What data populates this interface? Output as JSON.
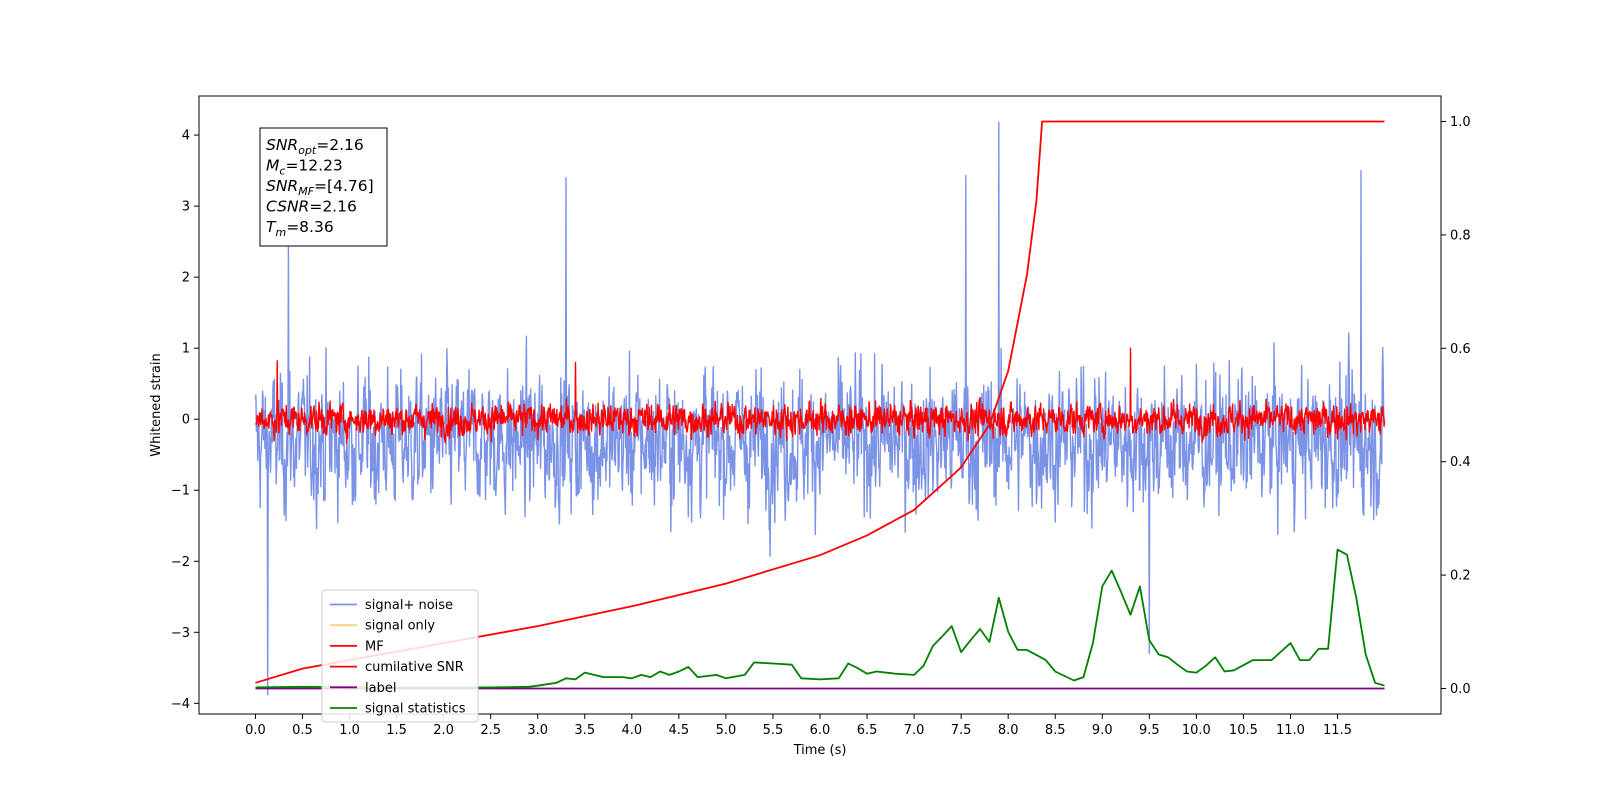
{
  "chart_data": {
    "type": "line",
    "xlabel": "Time (s)",
    "ylabel": "Whitened strain",
    "xlim": [
      -0.6,
      12.6
    ],
    "ylim": [
      -4.15,
      4.55
    ],
    "y2lim": [
      -0.045,
      1.045
    ],
    "x_ticks": [
      "0.0",
      "0.5",
      "1.0",
      "1.5",
      "2.0",
      "2.5",
      "3.0",
      "3.5",
      "4.0",
      "4.5",
      "5.0",
      "5.5",
      "6.0",
      "6.5",
      "7.0",
      "7.5",
      "8.0",
      "8.5",
      "9.0",
      "9.5",
      "10.0",
      "10.5",
      "11.0",
      "11.5"
    ],
    "y_ticks": [
      "4",
      "3",
      "2",
      "1",
      "0",
      "−1",
      "−2",
      "−3",
      "−4"
    ],
    "y2_ticks": [
      "1.0",
      "0.8",
      "0.6",
      "0.4",
      "0.2",
      "0.0"
    ],
    "annotation": {
      "lines": [
        {
          "name": "SNR",
          "sub": "opt",
          "value": "=2.16"
        },
        {
          "name": "M",
          "sub": "c",
          "value": "=12.23"
        },
        {
          "name": "SNR",
          "sub": "MF",
          "value": "=[4.76]"
        },
        {
          "name": "CSNR",
          "sub": "",
          "value": "=2.16"
        },
        {
          "name": "T",
          "sub": "m",
          "value": "=8.36"
        }
      ]
    },
    "legend": {
      "placement": "lower-left",
      "entries": [
        {
          "label": "signal+ noise",
          "color": "#7b93e6"
        },
        {
          "label": "signal only",
          "color": "#ffd27a"
        },
        {
          "label": "MF",
          "color": "#ff0000"
        },
        {
          "label": "cumilative SNR",
          "color": "#ff0000"
        },
        {
          "label": "label",
          "color": "#800080"
        },
        {
          "label": "signal statistics",
          "color": "#008000"
        }
      ]
    },
    "series": [
      {
        "name": "signal+ noise",
        "axis": "left",
        "color": "#7b93e6",
        "t_range": [
          0.0,
          12.0
        ],
        "mean": -0.3,
        "std": 0.72,
        "min": -4.0,
        "max": 4.18,
        "peaks": [
          [
            7.9,
            4.18
          ],
          [
            7.55,
            3.43
          ],
          [
            11.75,
            3.5
          ],
          [
            3.3,
            3.4
          ],
          [
            0.35,
            2.5
          ],
          [
            0.13,
            -3.88
          ],
          [
            9.5,
            -3.3
          ]
        ]
      },
      {
        "name": "MF",
        "axis": "left",
        "color": "#ff0000",
        "t_range": [
          0.0,
          12.0
        ],
        "mean": 0.0,
        "std": 0.17,
        "min": -0.35,
        "max": 1.0,
        "peaks": [
          [
            0.23,
            0.82
          ],
          [
            9.3,
            1.0
          ],
          [
            3.4,
            0.8
          ]
        ]
      },
      {
        "name": "cumilative SNR",
        "axis": "right",
        "color": "#ff0000",
        "x": [
          0.0,
          0.5,
          1.0,
          2.0,
          3.0,
          4.0,
          5.0,
          6.0,
          6.5,
          7.0,
          7.5,
          7.8,
          8.0,
          8.2,
          8.3,
          8.36,
          12.0
        ],
        "y": [
          0.01,
          0.035,
          0.05,
          0.08,
          0.11,
          0.145,
          0.185,
          0.235,
          0.27,
          0.315,
          0.39,
          0.465,
          0.56,
          0.73,
          0.86,
          1.0,
          1.0
        ]
      },
      {
        "name": "label",
        "axis": "right",
        "color": "#800080",
        "x": [
          0.0,
          12.0
        ],
        "y": [
          0.0,
          0.0
        ]
      },
      {
        "name": "signal statistics",
        "axis": "right",
        "color": "#008000",
        "x": [
          0.0,
          0.5,
          1.0,
          1.5,
          2.0,
          2.5,
          2.9,
          3.0,
          3.2,
          3.3,
          3.4,
          3.5,
          3.7,
          3.9,
          4.0,
          4.1,
          4.2,
          4.3,
          4.4,
          4.5,
          4.6,
          4.7,
          4.9,
          5.0,
          5.2,
          5.3,
          5.5,
          5.7,
          5.8,
          6.0,
          6.2,
          6.3,
          6.4,
          6.5,
          6.6,
          6.8,
          7.0,
          7.1,
          7.2,
          7.3,
          7.4,
          7.5,
          7.6,
          7.7,
          7.8,
          7.9,
          8.0,
          8.1,
          8.2,
          8.4,
          8.5,
          8.7,
          8.8,
          8.9,
          9.0,
          9.1,
          9.2,
          9.3,
          9.4,
          9.5,
          9.6,
          9.7,
          9.8,
          9.9,
          10.0,
          10.1,
          10.2,
          10.3,
          10.4,
          10.6,
          10.8,
          11.0,
          11.1,
          11.2,
          11.3,
          11.4,
          11.5,
          11.6,
          11.7,
          11.8,
          11.9,
          12.0
        ],
        "y": [
          0.002,
          0.003,
          0.002,
          0.002,
          0.002,
          0.002,
          0.003,
          0.005,
          0.01,
          0.018,
          0.016,
          0.028,
          0.02,
          0.02,
          0.018,
          0.024,
          0.02,
          0.03,
          0.024,
          0.03,
          0.038,
          0.02,
          0.024,
          0.018,
          0.024,
          0.046,
          0.044,
          0.042,
          0.018,
          0.016,
          0.018,
          0.044,
          0.036,
          0.026,
          0.03,
          0.026,
          0.024,
          0.04,
          0.075,
          0.092,
          0.11,
          0.064,
          0.085,
          0.105,
          0.082,
          0.16,
          0.1,
          0.068,
          0.068,
          0.05,
          0.03,
          0.014,
          0.02,
          0.08,
          0.18,
          0.208,
          0.17,
          0.13,
          0.18,
          0.085,
          0.06,
          0.055,
          0.042,
          0.03,
          0.028,
          0.04,
          0.055,
          0.03,
          0.032,
          0.05,
          0.05,
          0.08,
          0.05,
          0.05,
          0.07,
          0.07,
          0.245,
          0.236,
          0.16,
          0.06,
          0.01,
          0.005
        ]
      }
    ]
  }
}
